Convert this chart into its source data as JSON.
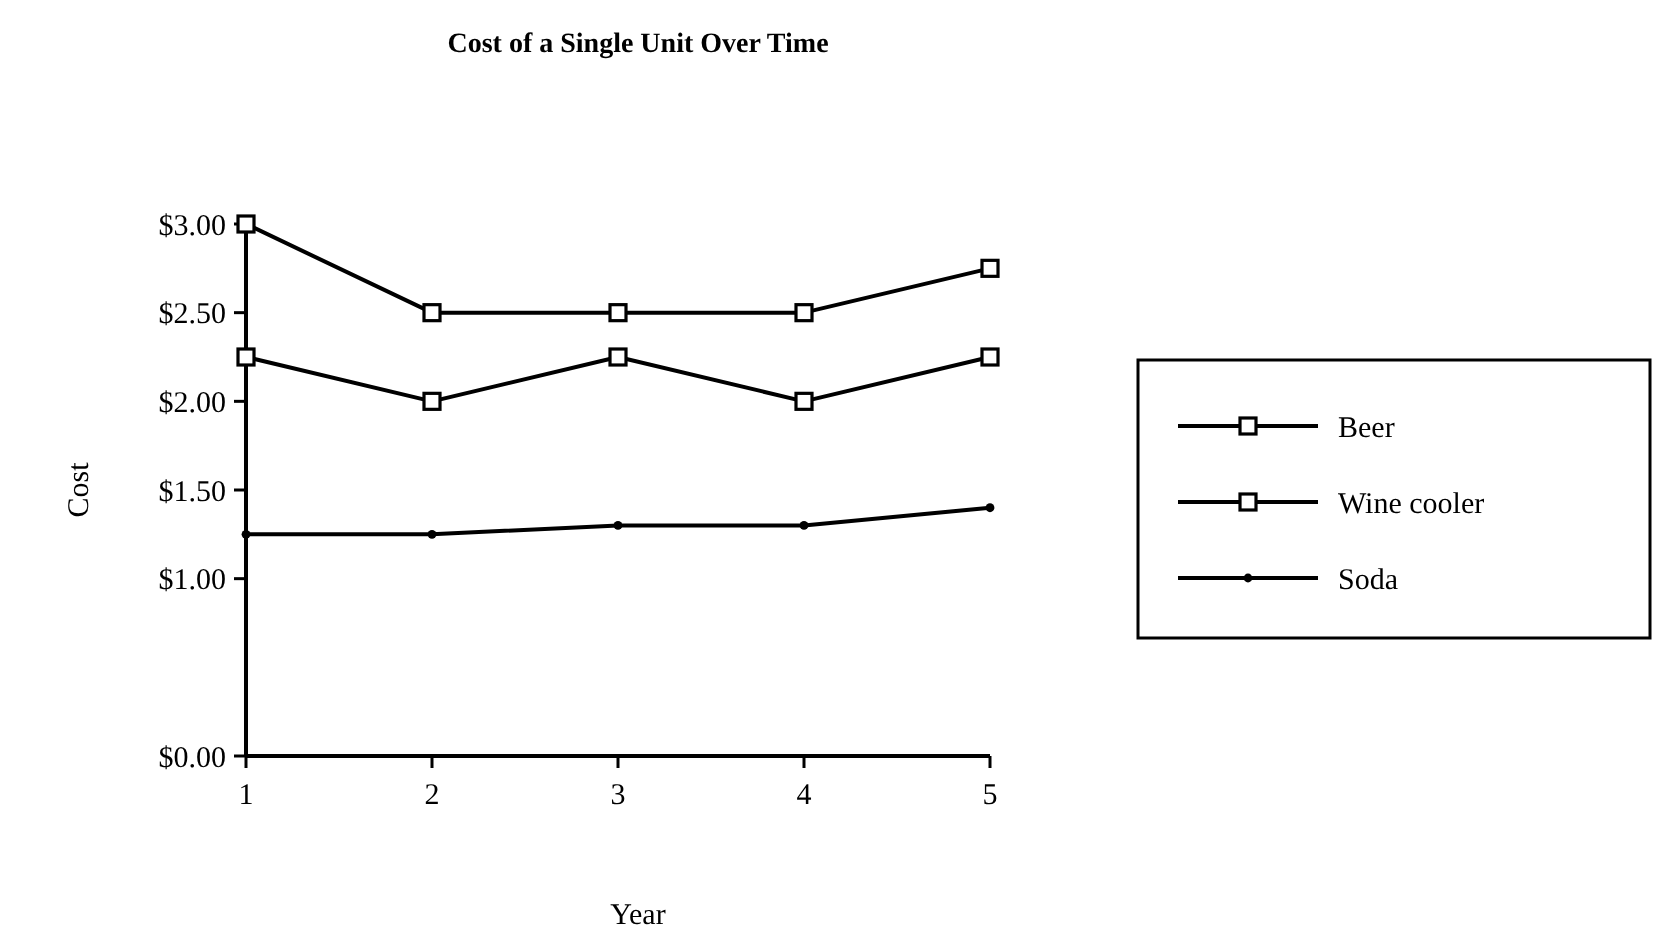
{
  "chart_data": {
    "type": "line",
    "title": "Cost of a Single Unit Over Time",
    "xlabel": "Year",
    "ylabel": "Cost",
    "categories": [
      "1",
      "2",
      "3",
      "4",
      "5"
    ],
    "series": [
      {
        "name": "Beer",
        "color": "#000000",
        "marker": "square",
        "values": [
          2.25,
          2.0,
          2.25,
          2.0,
          2.25
        ]
      },
      {
        "name": "Wine cooler",
        "color": "#000000",
        "marker": "square",
        "values": [
          3.0,
          2.5,
          2.5,
          2.5,
          2.75
        ]
      },
      {
        "name": "Soda",
        "color": "#000000",
        "marker": "circle",
        "values": [
          1.25,
          1.25,
          1.3,
          1.3,
          1.4
        ]
      }
    ],
    "ylim": [
      0,
      3
    ],
    "yticks": [
      {
        "value": 0,
        "label": "$0.00"
      },
      {
        "value": 1,
        "label": "$1.00"
      },
      {
        "value": 1.5,
        "label": "$1.50"
      },
      {
        "value": 2,
        "label": "$2.00"
      },
      {
        "value": 2.5,
        "label": "$2.50"
      },
      {
        "value": 3,
        "label": "$3.00"
      }
    ],
    "grid": false,
    "legend": "right"
  }
}
